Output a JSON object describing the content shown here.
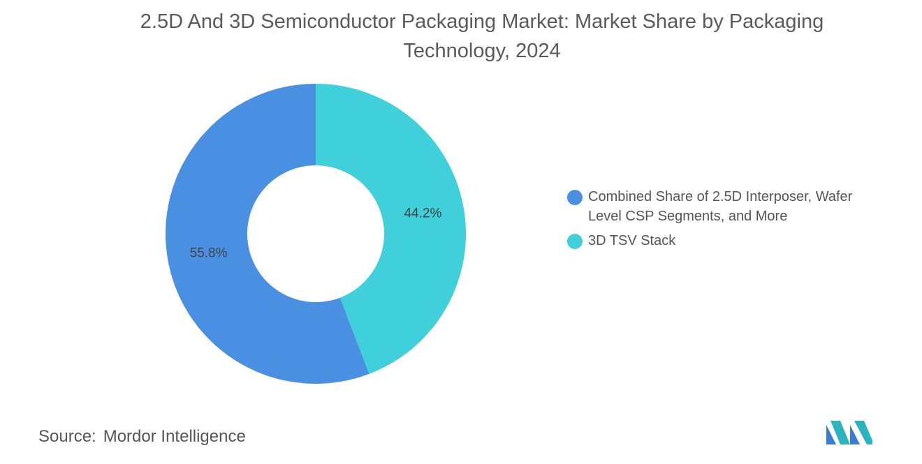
{
  "chart_data": {
    "type": "donut",
    "title": "2.5D And 3D Semiconductor Packaging Market: Market Share by Packaging Technology, 2024",
    "categories": [
      "Combined Share of 2.5D Interposer, Wafer Level CSP Segments, and More",
      "3D TSV Stack"
    ],
    "values": [
      55.8,
      44.2
    ],
    "value_labels": [
      "55.8%",
      "44.2%"
    ],
    "colors": [
      "#4a90e2",
      "#40d0dc"
    ],
    "source_label": "Source:",
    "source": "Mordor Intelligence"
  }
}
